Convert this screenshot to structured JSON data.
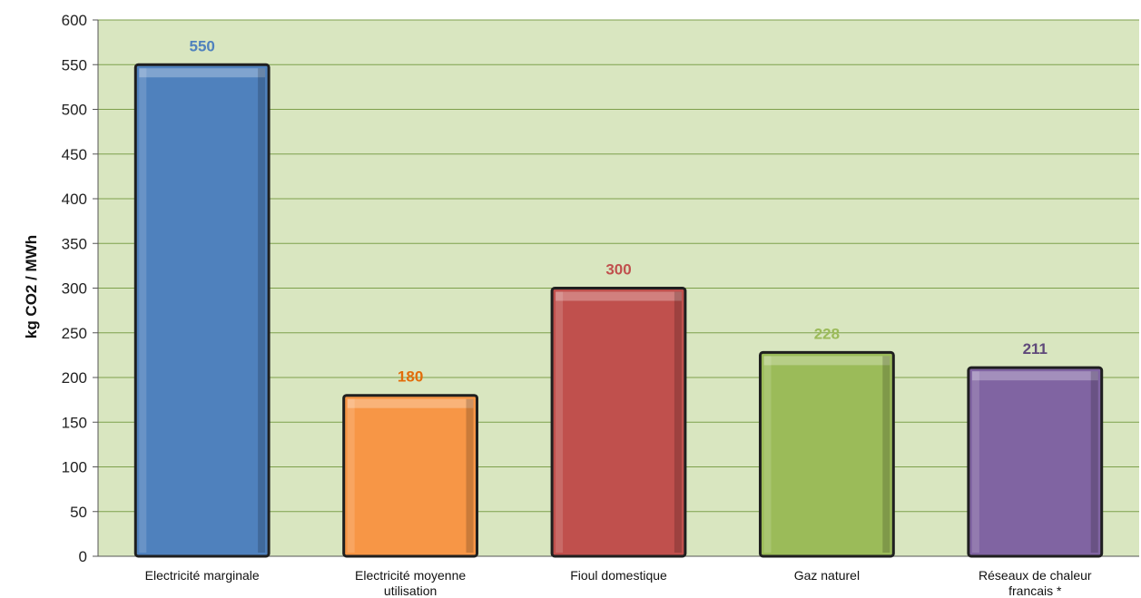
{
  "chart_data": {
    "type": "bar",
    "title": "",
    "xlabel": "",
    "ylabel": "kg CO2 / MWh",
    "ylim": [
      0,
      600
    ],
    "ytick_step": 50,
    "grid": true,
    "legend": "none",
    "plot_background": "#d9e6c0",
    "categories": [
      [
        "Electricité marginale"
      ],
      [
        "Electricité moyenne",
        "utilisation"
      ],
      [
        "Fioul domestique"
      ],
      [
        "Gaz naturel"
      ],
      [
        "Réseaux de chaleur",
        "francais *"
      ]
    ],
    "values": [
      550,
      180,
      300,
      228,
      211
    ],
    "colors": [
      "#4f81bd",
      "#f79646",
      "#c0504d",
      "#9bbb59",
      "#8064a2"
    ],
    "label_colors": [
      "#4f81bd",
      "#e36c0a",
      "#c0504d",
      "#9bbb59",
      "#5f497a"
    ]
  }
}
